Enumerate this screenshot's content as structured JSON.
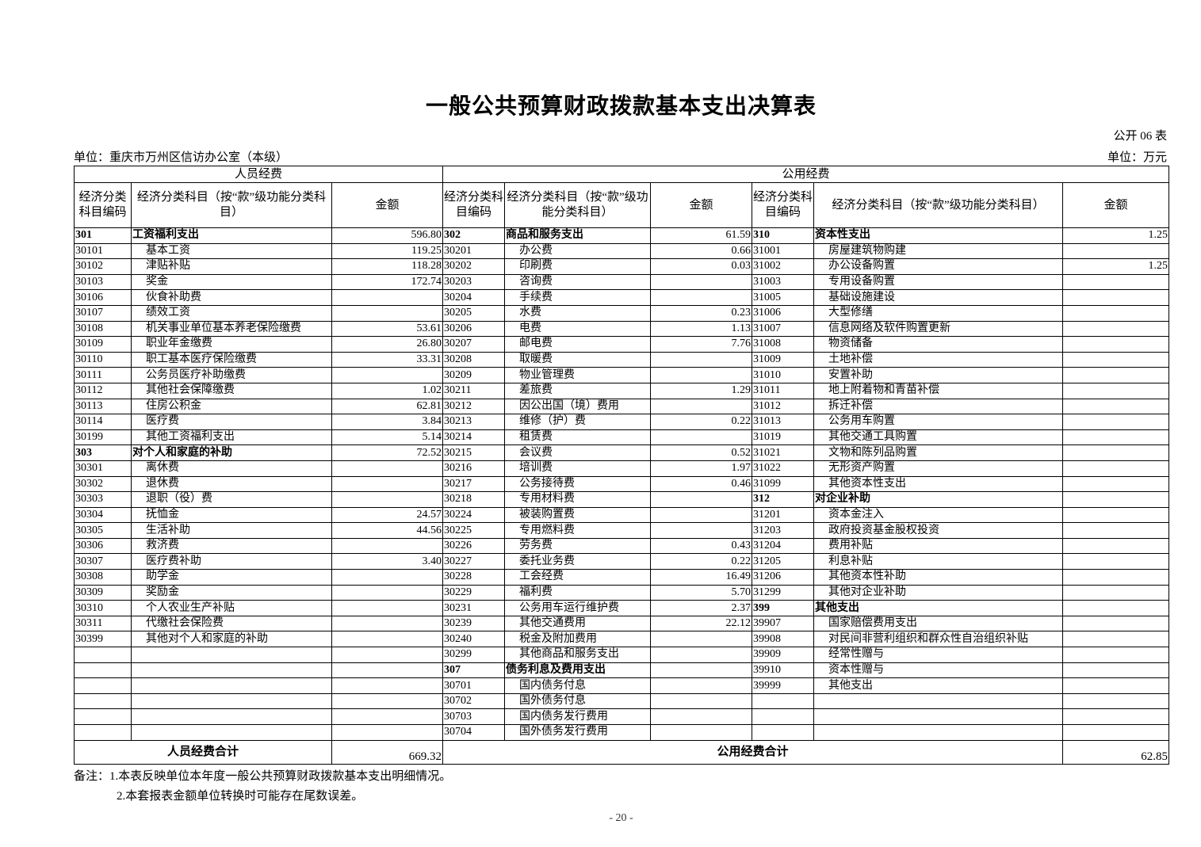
{
  "title": "一般公共预算财政拨款基本支出决算表",
  "form_no": "公开 06 表",
  "unit_org": "单位：重庆市万州区信访办公室（本级）",
  "unit_currency": "单位：万元",
  "headers": {
    "personnel": "人员经费",
    "public": "公用经费",
    "code": "经济分类科目编码",
    "name_personnel": "经济分类科目（按“款”级功能分类科目）",
    "amount": "金额",
    "name_mid": "经济分类科目（按“款”级功能分类科目）",
    "name_right": "经济分类科目（按“款”级功能分类科目）"
  },
  "rows": [
    {
      "l": [
        "301",
        "工资福利支出",
        "596.80",
        1
      ],
      "m": [
        "302",
        "商品和服务支出",
        "61.59",
        1
      ],
      "r": [
        "310",
        "资本性支出",
        "1.25",
        1
      ]
    },
    {
      "l": [
        "30101",
        "基本工资",
        "119.25"
      ],
      "m": [
        "30201",
        "办公费",
        "0.66"
      ],
      "r": [
        "31001",
        "房屋建筑物购建",
        ""
      ]
    },
    {
      "l": [
        "30102",
        "津贴补贴",
        "118.28"
      ],
      "m": [
        "30202",
        "印刷费",
        "0.03"
      ],
      "r": [
        "31002",
        "办公设备购置",
        "1.25"
      ]
    },
    {
      "l": [
        "30103",
        "奖金",
        "172.74"
      ],
      "m": [
        "30203",
        "咨询费",
        ""
      ],
      "r": [
        "31003",
        "专用设备购置",
        ""
      ]
    },
    {
      "l": [
        "30106",
        "伙食补助费",
        ""
      ],
      "m": [
        "30204",
        "手续费",
        ""
      ],
      "r": [
        "31005",
        "基础设施建设",
        ""
      ]
    },
    {
      "l": [
        "30107",
        "绩效工资",
        ""
      ],
      "m": [
        "30205",
        "水费",
        "0.23"
      ],
      "r": [
        "31006",
        "大型修缮",
        ""
      ]
    },
    {
      "l": [
        "30108",
        "机关事业单位基本养老保险缴费",
        "53.61"
      ],
      "m": [
        "30206",
        "电费",
        "1.13"
      ],
      "r": [
        "31007",
        "信息网络及软件购置更新",
        ""
      ]
    },
    {
      "l": [
        "30109",
        "职业年金缴费",
        "26.80"
      ],
      "m": [
        "30207",
        "邮电费",
        "7.76"
      ],
      "r": [
        "31008",
        "物资储备",
        ""
      ]
    },
    {
      "l": [
        "30110",
        "职工基本医疗保险缴费",
        "33.31"
      ],
      "m": [
        "30208",
        "取暖费",
        ""
      ],
      "r": [
        "31009",
        "土地补偿",
        ""
      ]
    },
    {
      "l": [
        "30111",
        "公务员医疗补助缴费",
        ""
      ],
      "m": [
        "30209",
        "物业管理费",
        ""
      ],
      "r": [
        "31010",
        "安置补助",
        ""
      ]
    },
    {
      "l": [
        "30112",
        "其他社会保障缴费",
        "1.02"
      ],
      "m": [
        "30211",
        "差旅费",
        "1.29"
      ],
      "r": [
        "31011",
        "地上附着物和青苗补偿",
        ""
      ]
    },
    {
      "l": [
        "30113",
        "住房公积金",
        "62.81"
      ],
      "m": [
        "30212",
        "因公出国（境）费用",
        ""
      ],
      "r": [
        "31012",
        "拆迁补偿",
        ""
      ]
    },
    {
      "l": [
        "30114",
        "医疗费",
        "3.84"
      ],
      "m": [
        "30213",
        "维修（护）费",
        "0.22"
      ],
      "r": [
        "31013",
        "公务用车购置",
        ""
      ]
    },
    {
      "l": [
        "30199",
        "其他工资福利支出",
        "5.14"
      ],
      "m": [
        "30214",
        "租赁费",
        ""
      ],
      "r": [
        "31019",
        "其他交通工具购置",
        ""
      ]
    },
    {
      "l": [
        "303",
        "对个人和家庭的补助",
        "72.52",
        1
      ],
      "m": [
        "30215",
        "会议费",
        "0.52"
      ],
      "r": [
        "31021",
        "文物和陈列品购置",
        ""
      ]
    },
    {
      "l": [
        "30301",
        "离休费",
        ""
      ],
      "m": [
        "30216",
        "培训费",
        "1.97"
      ],
      "r": [
        "31022",
        "无形资产购置",
        ""
      ]
    },
    {
      "l": [
        "30302",
        "退休费",
        ""
      ],
      "m": [
        "30217",
        "公务接待费",
        "0.46"
      ],
      "r": [
        "31099",
        "其他资本性支出",
        ""
      ]
    },
    {
      "l": [
        "30303",
        "退职（役）费",
        ""
      ],
      "m": [
        "30218",
        "专用材料费",
        ""
      ],
      "r": [
        "312",
        "对企业补助",
        "",
        1
      ]
    },
    {
      "l": [
        "30304",
        "抚恤金",
        "24.57"
      ],
      "m": [
        "30224",
        "被装购置费",
        ""
      ],
      "r": [
        "31201",
        "资本金注入",
        ""
      ]
    },
    {
      "l": [
        "30305",
        "生活补助",
        "44.56"
      ],
      "m": [
        "30225",
        "专用燃料费",
        ""
      ],
      "r": [
        "31203",
        "政府投资基金股权投资",
        ""
      ]
    },
    {
      "l": [
        "30306",
        "救济费",
        ""
      ],
      "m": [
        "30226",
        "劳务费",
        "0.43"
      ],
      "r": [
        "31204",
        "费用补贴",
        ""
      ]
    },
    {
      "l": [
        "30307",
        "医疗费补助",
        "3.40"
      ],
      "m": [
        "30227",
        "委托业务费",
        "0.22"
      ],
      "r": [
        "31205",
        "利息补贴",
        ""
      ]
    },
    {
      "l": [
        "30308",
        "助学金",
        ""
      ],
      "m": [
        "30228",
        "工会经费",
        "16.49"
      ],
      "r": [
        "31206",
        "其他资本性补助",
        ""
      ]
    },
    {
      "l": [
        "30309",
        "奖励金",
        ""
      ],
      "m": [
        "30229",
        "福利费",
        "5.70"
      ],
      "r": [
        "31299",
        "其他对企业补助",
        ""
      ]
    },
    {
      "l": [
        "30310",
        "个人农业生产补贴",
        ""
      ],
      "m": [
        "30231",
        "公务用车运行维护费",
        "2.37"
      ],
      "r": [
        "399",
        "其他支出",
        "",
        1
      ]
    },
    {
      "l": [
        "30311",
        "代缴社会保险费",
        ""
      ],
      "m": [
        "30239",
        "其他交通费用",
        "22.12"
      ],
      "r": [
        "39907",
        "国家赔偿费用支出",
        ""
      ]
    },
    {
      "l": [
        "30399",
        "其他对个人和家庭的补助",
        ""
      ],
      "m": [
        "30240",
        "税金及附加费用",
        ""
      ],
      "r": [
        "39908",
        "对民间非营利组织和群众性自治组织补贴",
        ""
      ]
    },
    {
      "l": [
        "",
        "",
        ""
      ],
      "m": [
        "30299",
        "其他商品和服务支出",
        ""
      ],
      "r": [
        "39909",
        "经常性赠与",
        ""
      ]
    },
    {
      "l": [
        "",
        "",
        ""
      ],
      "m": [
        "307",
        "债务利息及费用支出",
        "",
        1
      ],
      "r": [
        "39910",
        "资本性赠与",
        ""
      ]
    },
    {
      "l": [
        "",
        "",
        ""
      ],
      "m": [
        "30701",
        "国内债务付息",
        ""
      ],
      "r": [
        "39999",
        "其他支出",
        ""
      ]
    },
    {
      "l": [
        "",
        "",
        ""
      ],
      "m": [
        "30702",
        "国外债务付息",
        ""
      ],
      "r": [
        "",
        "",
        ""
      ]
    },
    {
      "l": [
        "",
        "",
        ""
      ],
      "m": [
        "30703",
        "国内债务发行费用",
        ""
      ],
      "r": [
        "",
        "",
        ""
      ]
    },
    {
      "l": [
        "",
        "",
        ""
      ],
      "m": [
        "30704",
        "国外债务发行费用",
        ""
      ],
      "r": [
        "",
        "",
        ""
      ]
    }
  ],
  "totals": {
    "personnel_label": "人员经费合计",
    "personnel_amount": "669.32",
    "public_label": "公用经费合计",
    "public_amount": "62.85"
  },
  "notes": {
    "line1": "备注：1.本表反映单位本年度一般公共预算财政拨款基本支出明细情况。",
    "line2": "2.本套报表金额单位转换时可能存在尾数误差。"
  },
  "page_number": "- 20 -"
}
